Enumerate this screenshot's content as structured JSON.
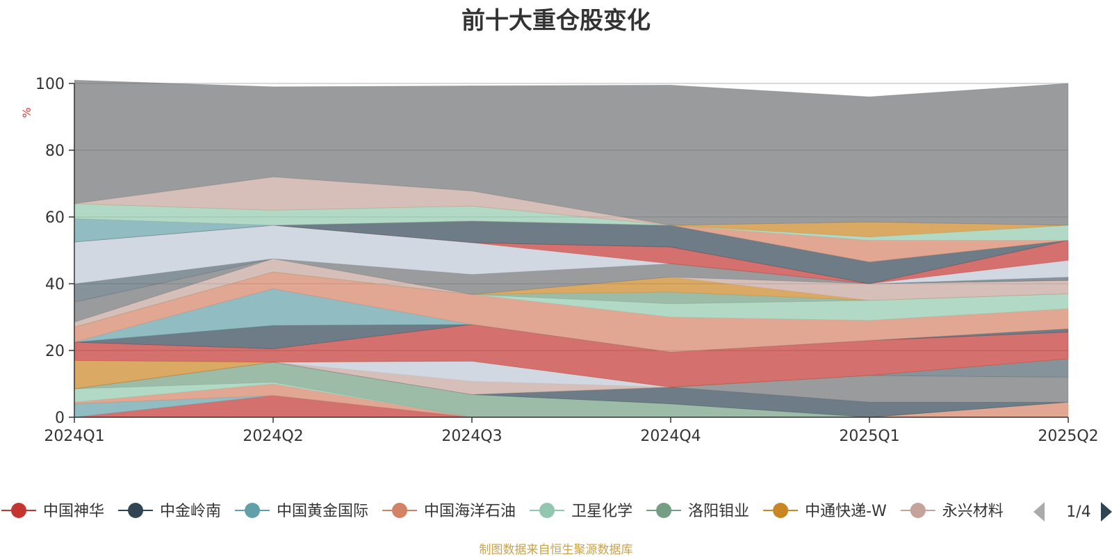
{
  "source_note": "制图数据来自恒生聚源数据库",
  "legend_page": "1/4",
  "chart_data": {
    "type": "area",
    "title": "前十大重仓股变化",
    "ylabel": "%",
    "ylim": [
      0,
      100
    ],
    "yticks": [
      "0",
      "20",
      "40",
      "60",
      "80",
      "100"
    ],
    "categories": [
      "2024Q1",
      "2024Q2",
      "2024Q3",
      "2024Q4",
      "2025Q1",
      "2025Q2"
    ],
    "legend_visible": [
      "中国神华",
      "中金岭南",
      "中国黄金国际",
      "中国海洋石油",
      "卫星化学",
      "洛阳钼业",
      "中通快递-W",
      "永兴材料"
    ],
    "series": [
      {
        "name": "中国神华",
        "color": "#c23531",
        "values": [
          0,
          6.5,
          0,
          0,
          0,
          0
        ]
      },
      {
        "name": "中国黄金国际",
        "color": "#61a0a8",
        "values": [
          4,
          0,
          0,
          0,
          0,
          0
        ]
      },
      {
        "name": "中国海洋石油",
        "color": "#d48265",
        "values": [
          0.5,
          3.5,
          0,
          0,
          0,
          4.5
        ]
      },
      {
        "name": "卫星化学",
        "color": "#91c7ae",
        "values": [
          4,
          0.5,
          0,
          0,
          0,
          0
        ]
      },
      {
        "name": "洛阳钼业",
        "color": "#749f83",
        "values": [
          0,
          6,
          6.8,
          4,
          0,
          0
        ]
      },
      {
        "name": "中金岭南",
        "color": "#2f4554",
        "values": [
          0,
          0,
          0,
          5,
          4.5,
          0
        ]
      },
      {
        "color": "#6e7074",
        "values": [
          0,
          0,
          0,
          0,
          8,
          7.5
        ]
      },
      {
        "color": "#546570",
        "values": [
          0,
          0,
          0,
          0,
          0,
          5.5
        ]
      },
      {
        "name": "永兴材料",
        "color": "#c4a39b",
        "values": [
          0,
          0,
          4,
          0,
          0,
          0
        ]
      },
      {
        "color": "#bfc8d4",
        "values": [
          0,
          0,
          6,
          0,
          0,
          0
        ]
      },
      {
        "name": "中通快递-W",
        "color": "#ca8622",
        "values": [
          8.5,
          0,
          0,
          0,
          0,
          0
        ]
      },
      {
        "name": "中国神华",
        "color": "#c23531",
        "values": [
          5.5,
          4,
          11,
          10.5,
          10.5,
          8
        ]
      },
      {
        "name": "中金岭南",
        "color": "#2f4554",
        "values": [
          0,
          7,
          0,
          0,
          0,
          1
        ]
      },
      {
        "name": "中国黄金国际",
        "color": "#61a0a8",
        "values": [
          0,
          11,
          0,
          0,
          0,
          0
        ]
      },
      {
        "name": "中国海洋石油",
        "color": "#d48265",
        "values": [
          4.5,
          5,
          9,
          10.5,
          6,
          6
        ]
      },
      {
        "name": "卫星化学",
        "color": "#91c7ae",
        "values": [
          0,
          0,
          0,
          4,
          6,
          4.5
        ]
      },
      {
        "name": "洛阳钼业",
        "color": "#749f83",
        "values": [
          0,
          0,
          0,
          3.5,
          0,
          0
        ]
      },
      {
        "name": "中通快递-W",
        "color": "#ca8622",
        "values": [
          0,
          0,
          0,
          4.5,
          0,
          0
        ]
      },
      {
        "name": "永兴材料",
        "color": "#c4a39b",
        "values": [
          1.5,
          4,
          0,
          0,
          5,
          4
        ]
      },
      {
        "color": "#6e7074",
        "values": [
          6,
          0,
          6,
          4,
          0,
          0
        ]
      },
      {
        "color": "#546570",
        "values": [
          5.5,
          0,
          0,
          0,
          0,
          1
        ]
      },
      {
        "color": "#bfc8d4",
        "values": [
          12.5,
          10,
          9.5,
          0,
          0,
          5
        ]
      },
      {
        "name": "中国神华",
        "color": "#c23531",
        "values": [
          0,
          0,
          0,
          5,
          0,
          6
        ]
      },
      {
        "name": "中金岭南",
        "color": "#2f4554",
        "values": [
          0,
          0,
          6.5,
          6.5,
          6.5,
          0
        ]
      },
      {
        "name": "中国黄金国际",
        "color": "#61a0a8",
        "values": [
          7,
          0,
          0,
          0,
          0,
          0
        ]
      },
      {
        "name": "中国海洋石油",
        "color": "#d48265",
        "values": [
          0,
          0,
          0,
          0,
          6.5,
          0
        ]
      },
      {
        "name": "卫星化学",
        "color": "#91c7ae",
        "values": [
          4.5,
          4.5,
          4.5,
          0,
          1,
          4.5
        ]
      },
      {
        "name": "中通快递-W",
        "color": "#ca8622",
        "values": [
          0,
          0,
          0,
          0,
          4.5,
          0
        ]
      },
      {
        "name": "永兴材料",
        "color": "#c4a39b",
        "values": [
          0,
          10,
          4.5,
          0,
          0,
          0
        ]
      },
      {
        "color": "#6e7074",
        "values": [
          37,
          27,
          31.5,
          42,
          37.5,
          42.5
        ]
      }
    ]
  }
}
